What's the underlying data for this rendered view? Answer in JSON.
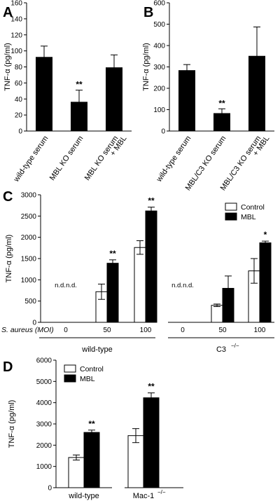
{
  "chart_data": [
    {
      "panel": "A",
      "type": "bar",
      "ylabel": "TNF-α  (pg/ml)",
      "ylim": [
        0,
        160
      ],
      "yticks": [
        0,
        20,
        40,
        60,
        80,
        100,
        120,
        140,
        160
      ],
      "categories": [
        "wild-type serum",
        "MBL KO serum",
        "MBL KO serum\n+ MBL"
      ],
      "values": [
        92,
        36,
        79
      ],
      "errors": [
        14,
        15,
        16
      ],
      "annotations": [
        "",
        "**",
        ""
      ],
      "colors": [
        "#000000",
        "#000000",
        "#000000"
      ]
    },
    {
      "panel": "B",
      "type": "bar",
      "ylabel": "TNF-α  (pg/ml)",
      "ylim": [
        0,
        600
      ],
      "yticks": [
        0,
        100,
        200,
        300,
        400,
        500,
        600
      ],
      "categories": [
        "wild-type serum",
        "MBL/C3 KO serum",
        "MBL/C3 KO serum\n+ MBL"
      ],
      "values": [
        283,
        82,
        350
      ],
      "errors": [
        28,
        22,
        137
      ],
      "annotations": [
        "",
        "**",
        ""
      ],
      "colors": [
        "#000000",
        "#000000",
        "#000000"
      ]
    },
    {
      "panel": "C",
      "type": "bar",
      "ylabel": "TNF-α  (pg/ml)",
      "ylim": [
        0,
        3000
      ],
      "yticks": [
        0,
        500,
        1000,
        1500,
        2000,
        2500,
        3000
      ],
      "x_prefix": "S. aureus (MOI)",
      "categories": [
        "0",
        "50",
        "100",
        "0",
        "50",
        "100"
      ],
      "groups": [
        {
          "label": "wild-type",
          "sup": ""
        },
        {
          "label": "C3",
          "sup": "−/−"
        }
      ],
      "series": [
        {
          "name": "Control",
          "values": [
            0,
            720,
            1760,
            0,
            400,
            1210
          ],
          "errors": [
            0,
            180,
            160,
            0,
            30,
            290
          ],
          "annotations": [
            "n.d.",
            "",
            "",
            "n.d.",
            "",
            ""
          ]
        },
        {
          "name": "MBL",
          "values": [
            0,
            1390,
            2620,
            0,
            800,
            1870
          ],
          "errors": [
            0,
            80,
            90,
            0,
            290,
            40
          ],
          "annotations": [
            "n.d.",
            "**",
            "**",
            "n.d.",
            "",
            "*"
          ]
        }
      ],
      "legend": "top-right",
      "colors": {
        "Control": "#ffffff",
        "MBL": "#000000"
      }
    },
    {
      "panel": "D",
      "type": "bar",
      "ylabel": "TNF-α  (pg/ml)",
      "ylim": [
        0,
        6000
      ],
      "yticks": [
        0,
        1000,
        2000,
        3000,
        4000,
        5000,
        6000
      ],
      "categories": [
        {
          "label": "wild-type",
          "sup": ""
        },
        {
          "label": "Mac-1",
          "sup": "−/−"
        }
      ],
      "series": [
        {
          "name": "Control",
          "values": [
            1420,
            2450
          ],
          "errors": [
            120,
            330
          ],
          "annotations": [
            "",
            ""
          ]
        },
        {
          "name": "MBL",
          "values": [
            2600,
            4230
          ],
          "errors": [
            110,
            230
          ],
          "annotations": [
            "**",
            "**"
          ]
        }
      ],
      "legend": "top-left",
      "colors": {
        "Control": "#ffffff",
        "MBL": "#000000"
      }
    }
  ]
}
